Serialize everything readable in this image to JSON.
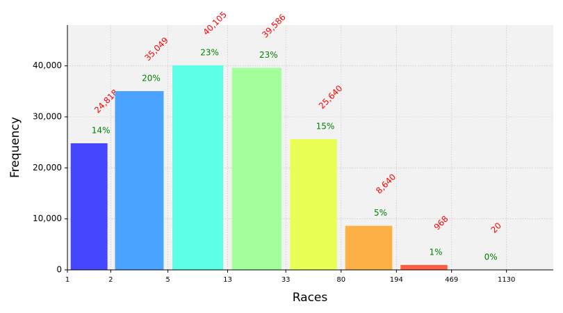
{
  "chart_data": {
    "type": "histogram",
    "x_label": "Races",
    "y_label": "Frequency",
    "bins": [
      1,
      2,
      5,
      13,
      33,
      80,
      194,
      469,
      1130
    ],
    "values": [
      24818,
      35049,
      40105,
      39586,
      25640,
      8640,
      968,
      20
    ],
    "value_labels": [
      "24,818",
      "35,049",
      "40,105",
      "39,586",
      "25,640",
      "8,640",
      "968",
      "20"
    ],
    "percent_labels": [
      "14%",
      "20%",
      "23%",
      "23%",
      "15%",
      "5%",
      "1%",
      "0%"
    ],
    "colors": [
      "#4646ff",
      "#4aa3ff",
      "#5affe6",
      "#a3ff9a",
      "#eaff55",
      "#fdb045",
      "#ff5e45",
      "#e8301c"
    ],
    "xscale": "log",
    "xlim": [
      1,
      2390
    ],
    "xticks": [
      1,
      2,
      5,
      13,
      33,
      80,
      194,
      469,
      1130
    ],
    "ylim": [
      0,
      48000
    ],
    "yticks": [
      0,
      {
        "value": 10000,
        "label": "10,000"
      },
      {
        "value": 20000,
        "label": "20,000"
      },
      {
        "value": 30000,
        "label": "30,000"
      },
      {
        "value": 40000,
        "label": "40,000"
      }
    ],
    "grid": true
  }
}
